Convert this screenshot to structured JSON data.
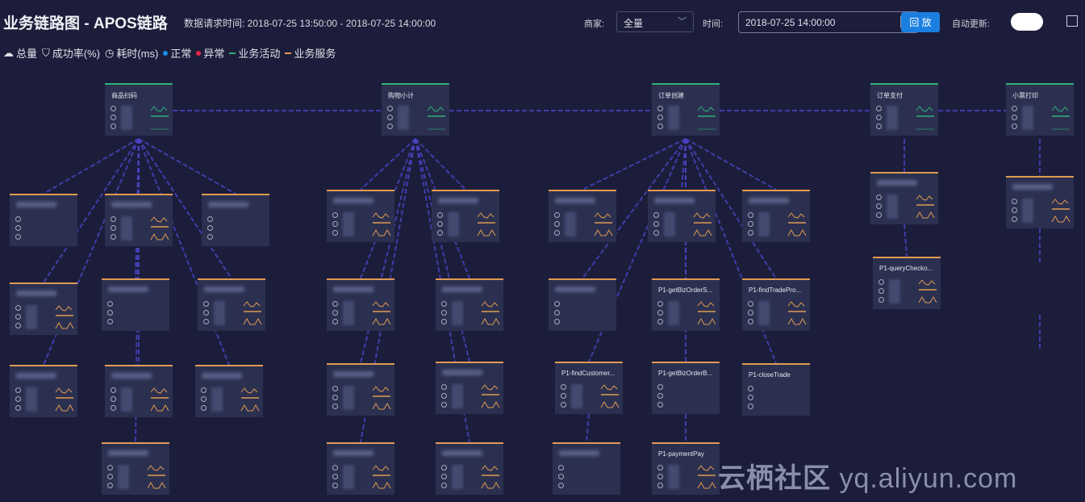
{
  "header": {
    "title": "业务链路图 - APOS链路",
    "request_time": "数据请求时间: 2018-07-25 13:50:00 - 2018-07-25 14:00:00",
    "merchant_label": "商家:",
    "merchant_value": "全量",
    "time_label": "时间:",
    "time_value": "2018-07-25 14:00:00",
    "replay_button": "回 放",
    "auto_update_label": "自动更新:",
    "auto_update_on": true
  },
  "legend": {
    "total": "总量",
    "success_rate": "成功率(%)",
    "latency": "耗时(ms)",
    "normal": "正常",
    "abnormal": "异常",
    "activity": "业务活动",
    "service": "业务服务"
  },
  "colors": {
    "normal": "#1b8cf0",
    "abnormal": "#e8264a",
    "activity": "#2fb07a",
    "service": "#e09a52",
    "edge": "#4a45c8"
  },
  "cards": [
    {
      "title": "商品扫码",
      "kind": "activity",
      "charts": true
    },
    {
      "title": "购物小计",
      "kind": "activity",
      "charts": true
    },
    {
      "title": "订单创建",
      "kind": "activity",
      "charts": true
    },
    {
      "title": "订单支付",
      "kind": "activity",
      "charts": true
    },
    {
      "title": "小票打印",
      "kind": "activity",
      "charts": true
    },
    {
      "title": "",
      "kind": "service",
      "charts": false
    },
    {
      "title": "",
      "kind": "service",
      "charts": true
    },
    {
      "title": "",
      "kind": "service",
      "charts": false
    },
    {
      "title": "",
      "kind": "service",
      "charts": true
    },
    {
      "title": "",
      "kind": "service",
      "charts": false
    },
    {
      "title": "",
      "kind": "service",
      "charts": true
    },
    {
      "title": "",
      "kind": "service",
      "charts": true
    },
    {
      "title": "",
      "kind": "service",
      "charts": true
    },
    {
      "title": "",
      "kind": "service",
      "charts": true
    },
    {
      "title": "",
      "kind": "service",
      "charts": true
    },
    {
      "title": "",
      "kind": "service",
      "charts": true
    },
    {
      "title": "",
      "kind": "service",
      "charts": true
    },
    {
      "title": "",
      "kind": "service",
      "charts": true
    },
    {
      "title": "",
      "kind": "service",
      "charts": true
    },
    {
      "title": "",
      "kind": "service",
      "charts": true
    },
    {
      "title": "",
      "kind": "service",
      "charts": true
    },
    {
      "title": "",
      "kind": "service",
      "charts": true
    },
    {
      "title": "",
      "kind": "service",
      "charts": true
    },
    {
      "title": "",
      "kind": "service",
      "charts": true
    },
    {
      "title": "",
      "kind": "service",
      "charts": true
    },
    {
      "title": "",
      "kind": "service",
      "charts": true
    },
    {
      "title": "",
      "kind": "service",
      "charts": false
    },
    {
      "title": "P1-getBizOrderS...",
      "kind": "service",
      "charts": true
    },
    {
      "title": "P1-findTradePro...",
      "kind": "service",
      "charts": true
    },
    {
      "title": "P1-findCustomer...",
      "kind": "service",
      "charts": true
    },
    {
      "title": "P1-getBizOrderB...",
      "kind": "service",
      "charts": false
    },
    {
      "title": "P1-closeTrade",
      "kind": "service",
      "charts": false
    },
    {
      "title": "",
      "kind": "service",
      "charts": false
    },
    {
      "title": "P1-paymentPay",
      "kind": "service",
      "charts": true
    },
    {
      "title": "",
      "kind": "service",
      "charts": true
    },
    {
      "title": "P1-queryChecko...",
      "kind": "service",
      "charts": true
    },
    {
      "title": "",
      "kind": "service",
      "charts": true
    }
  ],
  "watermark": {
    "cn": "云栖社区",
    "url": "yq.aliyun.com"
  }
}
